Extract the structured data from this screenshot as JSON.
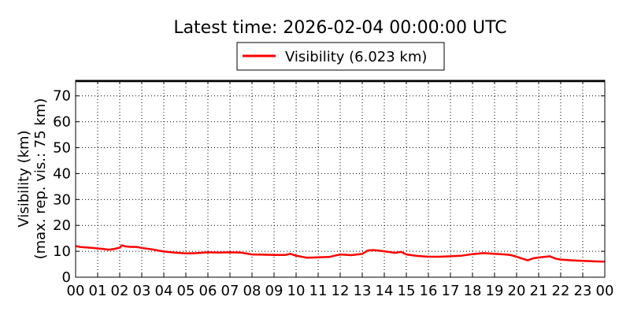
{
  "chart_data": {
    "type": "line",
    "title": "Latest time: 2026-02-04 00:00:00 UTC",
    "ylabel_line1": "Visibility (km)",
    "ylabel_line2": "(max. rep. vis.: 75 km)",
    "xlabel": "",
    "legend": {
      "placement": "top-center",
      "entries": [
        "Visibility (6.023 km)"
      ]
    },
    "grid": true,
    "xlim": [
      0,
      24
    ],
    "ylim": [
      0,
      76
    ],
    "x_ticks": [
      "00",
      "01",
      "02",
      "03",
      "04",
      "05",
      "06",
      "07",
      "08",
      "09",
      "10",
      "11",
      "12",
      "13",
      "14",
      "15",
      "16",
      "17",
      "18",
      "19",
      "20",
      "21",
      "22",
      "23",
      "00"
    ],
    "y_ticks": [
      0,
      10,
      20,
      30,
      40,
      50,
      60,
      70
    ],
    "series": [
      {
        "name": "Visibility (6.023 km)",
        "color": "#ff0000",
        "x": [
          0,
          0.25,
          0.5,
          0.75,
          1.0,
          1.25,
          1.5,
          1.75,
          2.0,
          2.1,
          2.25,
          2.5,
          2.75,
          3.0,
          3.25,
          3.5,
          3.75,
          4.0,
          4.5,
          5.0,
          5.5,
          6.0,
          6.5,
          7.0,
          7.5,
          8.0,
          8.5,
          9.0,
          9.5,
          9.75,
          10.0,
          10.5,
          11.0,
          11.5,
          11.75,
          12.0,
          12.5,
          13.0,
          13.25,
          13.5,
          14.0,
          14.5,
          14.75,
          15.0,
          15.5,
          16.0,
          16.5,
          17.0,
          17.5,
          18.0,
          18.5,
          19.0,
          19.5,
          19.75,
          20.0,
          20.1,
          20.25,
          20.5,
          20.75,
          21.0,
          21.25,
          21.5,
          21.75,
          22.0,
          22.5,
          23.0,
          23.5,
          24.0
        ],
        "values": [
          12.0,
          11.6,
          11.5,
          11.3,
          11.1,
          10.9,
          10.6,
          10.9,
          11.4,
          12.3,
          11.9,
          11.7,
          11.7,
          11.3,
          11.0,
          10.7,
          10.3,
          9.9,
          9.5,
          9.2,
          9.3,
          9.6,
          9.5,
          9.6,
          9.5,
          8.8,
          8.7,
          8.6,
          8.6,
          9.0,
          8.3,
          7.5,
          7.7,
          7.8,
          8.3,
          8.8,
          8.5,
          9.0,
          10.3,
          10.5,
          10.0,
          9.4,
          9.8,
          8.8,
          8.2,
          7.9,
          7.9,
          8.1,
          8.3,
          8.9,
          9.3,
          9.0,
          8.8,
          8.5,
          7.9,
          7.6,
          7.2,
          6.5,
          7.3,
          7.6,
          7.8,
          8.1,
          7.2,
          6.8,
          6.5,
          6.3,
          6.1,
          6.0
        ]
      }
    ]
  }
}
